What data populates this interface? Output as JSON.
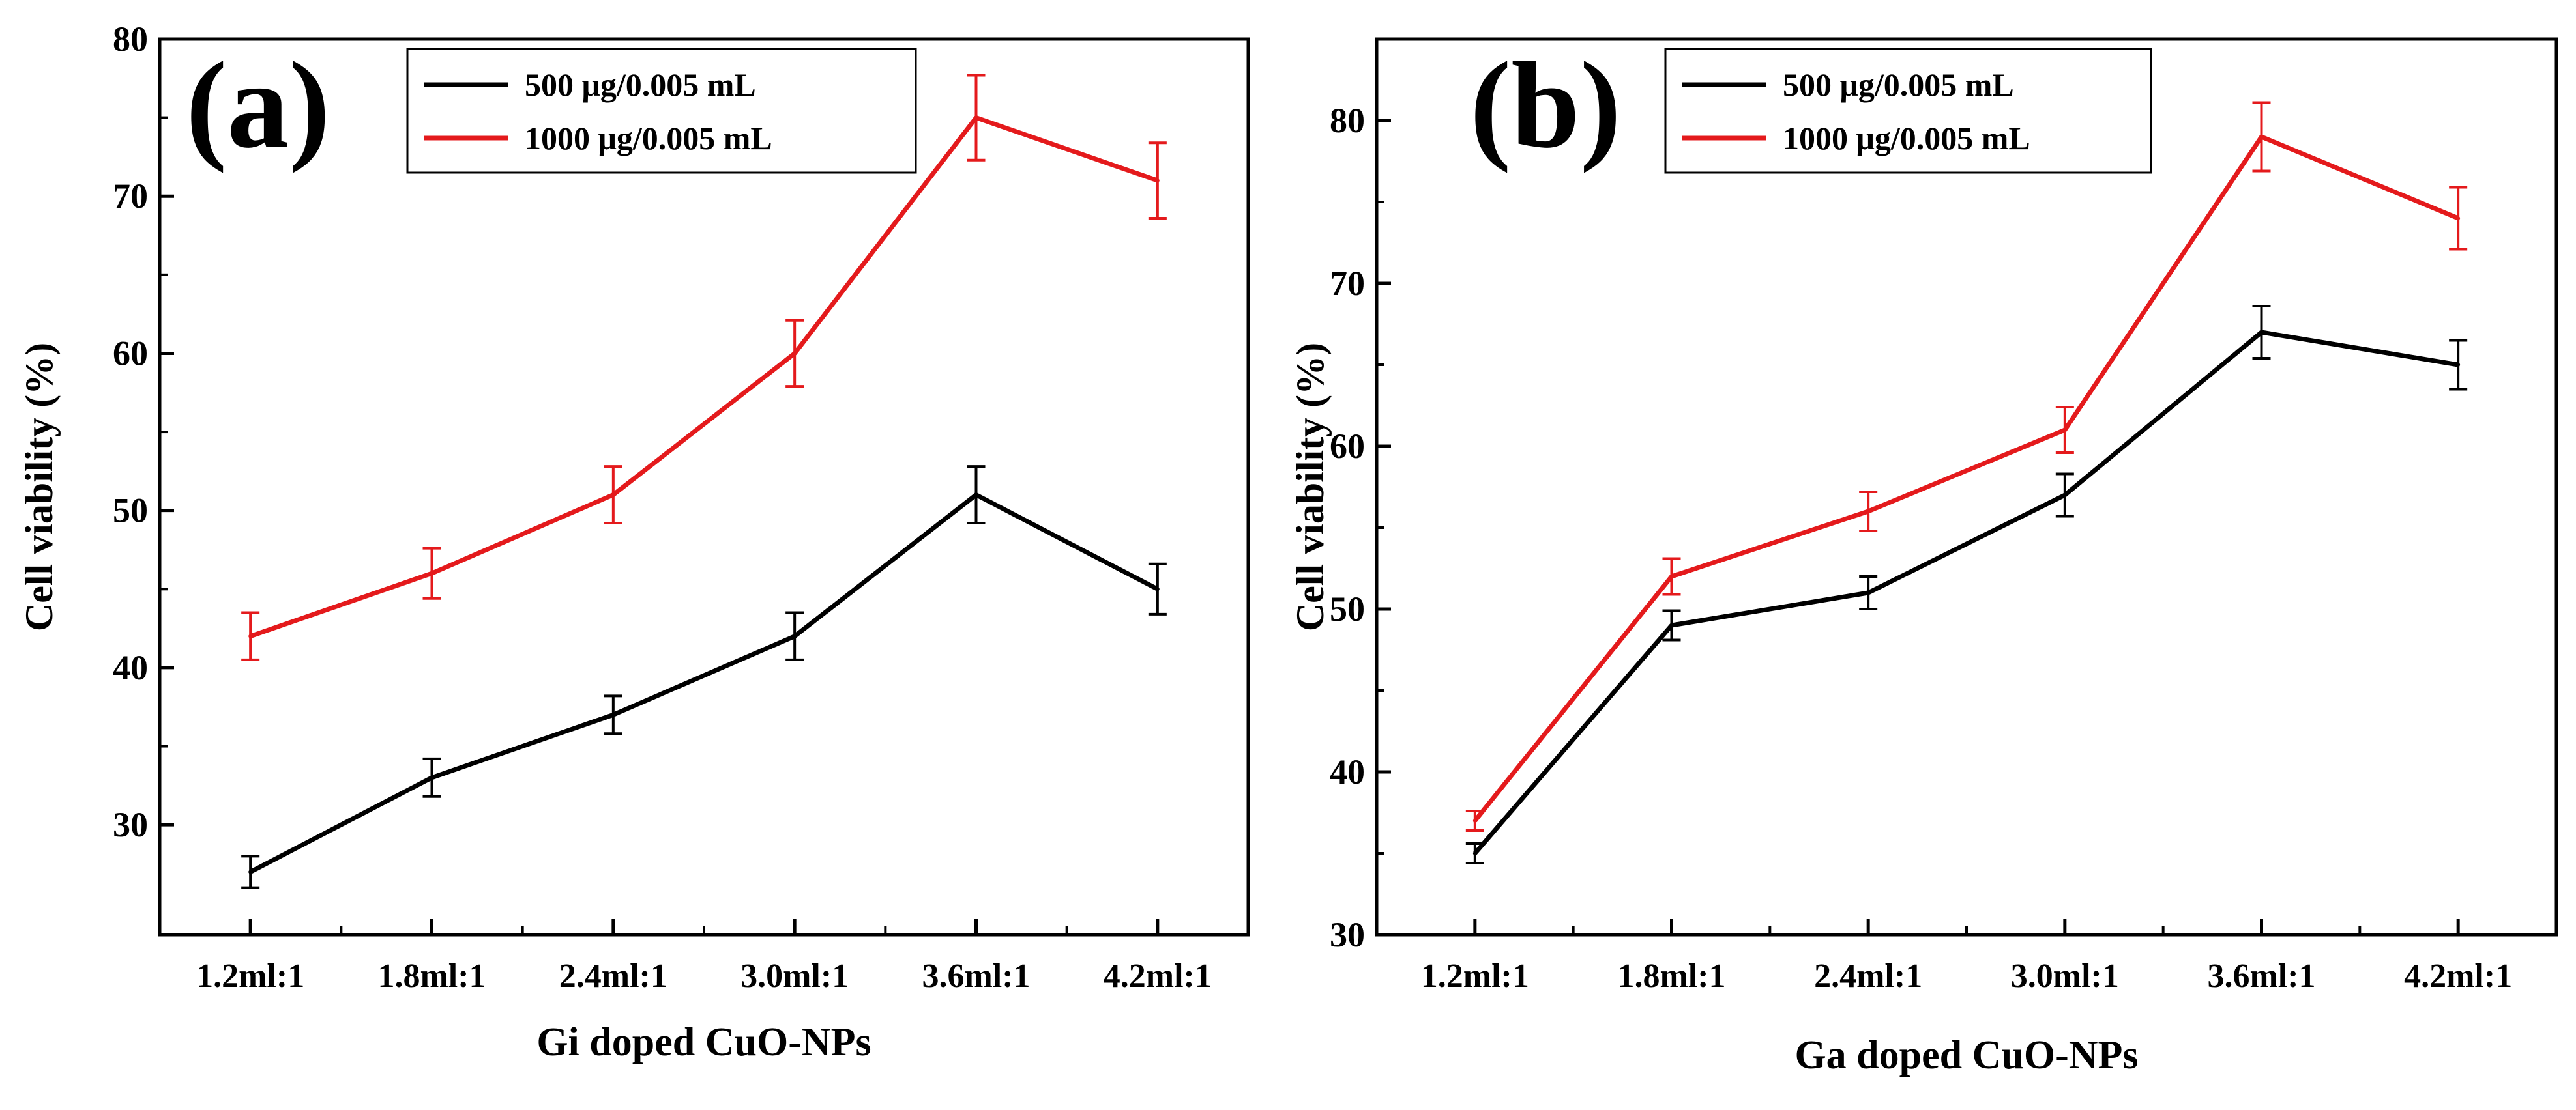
{
  "chart_data": [
    {
      "type": "line",
      "panel_label": "(a)",
      "categories": [
        "1.2ml:1",
        "1.8ml:1",
        "2.4ml:1",
        "3.0ml:1",
        "3.6ml:1",
        "4.2ml:1"
      ],
      "xlabel": "Gi doped CuO-NPs",
      "ylabel": "Cell viability (%)",
      "ylim": [
        23,
        80
      ],
      "yticks": [
        30,
        40,
        50,
        60,
        70,
        80
      ],
      "legend_position": "top-center",
      "series": [
        {
          "name": "500 μg/0.005 mL",
          "color": "#000000",
          "values": [
            27,
            33,
            37,
            42,
            51,
            45
          ],
          "errors": [
            1.0,
            1.2,
            1.2,
            1.5,
            1.8,
            1.6
          ]
        },
        {
          "name": "1000 μg/0.005 mL",
          "color": "#e41a1c",
          "values": [
            42,
            46,
            51,
            60,
            75,
            71
          ],
          "errors": [
            1.5,
            1.6,
            1.8,
            2.1,
            2.7,
            2.4
          ]
        }
      ]
    },
    {
      "type": "line",
      "panel_label": "(b)",
      "categories": [
        "1.2ml:1",
        "1.8ml:1",
        "2.4ml:1",
        "3.0ml:1",
        "3.6ml:1",
        "4.2ml:1"
      ],
      "xlabel": "Ga doped CuO-NPs",
      "ylabel": "Cell viability (%)",
      "ylim": [
        30,
        85
      ],
      "yticks": [
        30,
        40,
        50,
        60,
        70,
        80
      ],
      "legend_position": "top-center",
      "series": [
        {
          "name": "500 μg/0.005 mL",
          "color": "#000000",
          "values": [
            35,
            49,
            51,
            57,
            67,
            65
          ],
          "errors": [
            0.6,
            0.9,
            1.0,
            1.3,
            1.6,
            1.5
          ]
        },
        {
          "name": "1000 μg/0.005 mL",
          "color": "#e41a1c",
          "values": [
            37,
            52,
            56,
            61,
            79,
            74
          ],
          "errors": [
            0.6,
            1.1,
            1.2,
            1.4,
            2.1,
            1.9
          ]
        }
      ]
    }
  ]
}
